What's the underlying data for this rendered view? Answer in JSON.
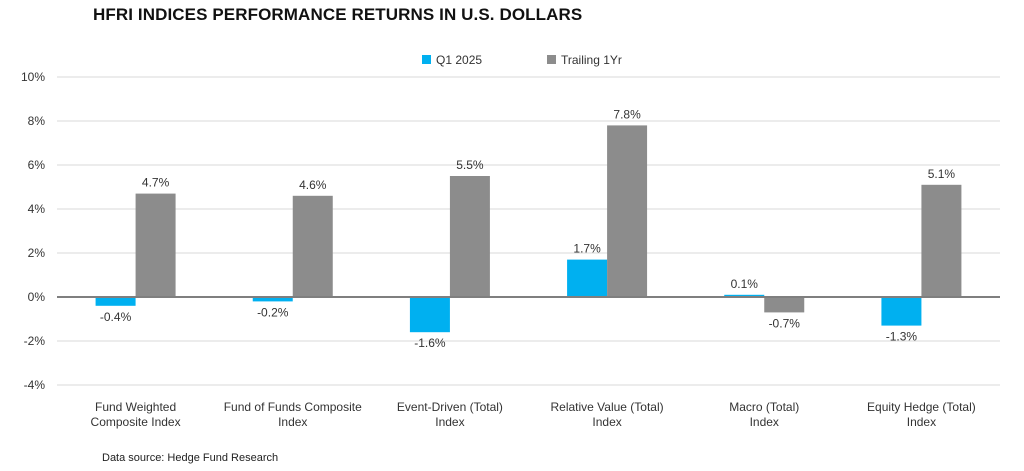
{
  "chart_data": {
    "type": "bar",
    "title": "HFRI INDICES PERFORMANCE RETURNS IN U.S. DOLLARS",
    "categories": [
      [
        "Fund Weighted",
        "Composite Index"
      ],
      [
        "Fund of Funds Composite",
        "Index"
      ],
      [
        "Event-Driven (Total)",
        "Index"
      ],
      [
        "Relative Value (Total)",
        "Index"
      ],
      [
        "Macro (Total)",
        "Index"
      ],
      [
        "Equity Hedge (Total)",
        "Index"
      ]
    ],
    "series": [
      {
        "name": "Q1 2025",
        "color": "#00b0f0",
        "values": [
          -0.4,
          -0.2,
          -1.6,
          1.7,
          0.1,
          -1.3
        ],
        "labels": [
          "-0.4%",
          "-0.2%",
          "-1.6%",
          "1.7%",
          "0.1%",
          "-1.3%"
        ]
      },
      {
        "name": "Trailing 1Yr",
        "color": "#8c8c8c",
        "values": [
          4.7,
          4.6,
          5.5,
          7.8,
          -0.7,
          5.1
        ],
        "labels": [
          "4.7%",
          "4.6%",
          "5.5%",
          "7.8%",
          "-0.7%",
          "5.1%"
        ]
      }
    ],
    "ylim": [
      -4,
      10
    ],
    "yticks": [
      -4,
      -2,
      0,
      2,
      4,
      6,
      8,
      10
    ],
    "ytick_labels": [
      "-4%",
      "-2%",
      "0%",
      "2%",
      "4%",
      "6%",
      "8%",
      "10%"
    ],
    "grid": true,
    "legend": "top-center",
    "source": "Data source:  Hedge Fund Research"
  }
}
